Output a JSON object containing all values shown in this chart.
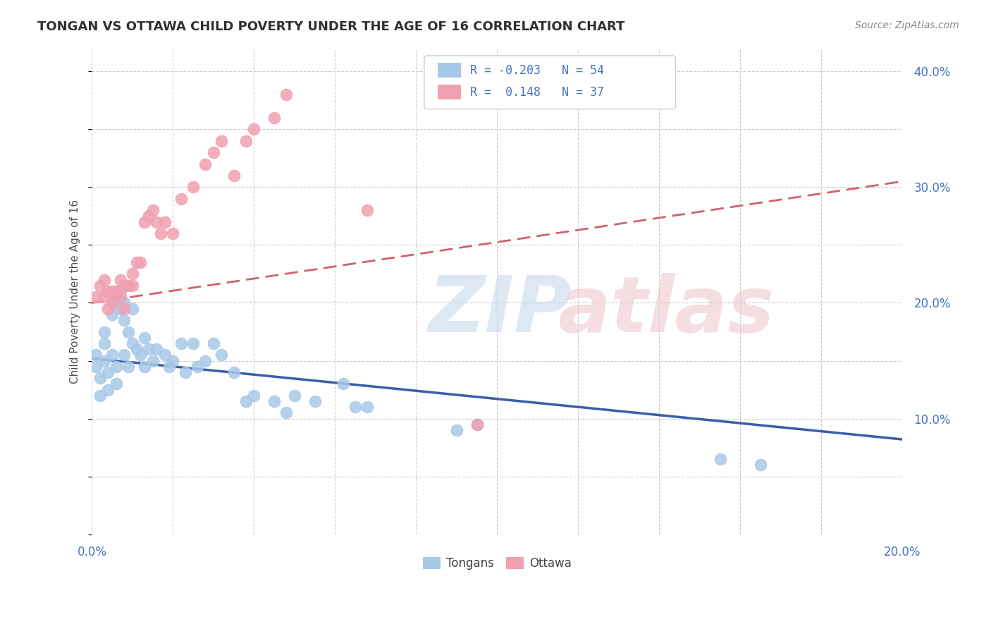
{
  "title": "TONGAN VS OTTAWA CHILD POVERTY UNDER THE AGE OF 16 CORRELATION CHART",
  "source": "Source: ZipAtlas.com",
  "ylabel_label": "Child Poverty Under the Age of 16",
  "xlim": [
    0.0,
    0.2
  ],
  "ylim": [
    0.0,
    0.42
  ],
  "blue_color": "#A8C8E8",
  "pink_color": "#F0A0B0",
  "blue_line_color": "#3A5EA8",
  "pink_line_color": "#D06070",
  "tongans_x": [
    0.001,
    0.001,
    0.002,
    0.002,
    0.003,
    0.003,
    0.003,
    0.004,
    0.004,
    0.005,
    0.005,
    0.005,
    0.006,
    0.006,
    0.007,
    0.007,
    0.008,
    0.008,
    0.008,
    0.009,
    0.009,
    0.01,
    0.01,
    0.011,
    0.012,
    0.013,
    0.013,
    0.014,
    0.015,
    0.016,
    0.018,
    0.019,
    0.02,
    0.022,
    0.023,
    0.025,
    0.026,
    0.028,
    0.03,
    0.032,
    0.035,
    0.038,
    0.04,
    0.045,
    0.048,
    0.05,
    0.055,
    0.062,
    0.065,
    0.068,
    0.09,
    0.095,
    0.155,
    0.165
  ],
  "tongans_y": [
    0.155,
    0.145,
    0.135,
    0.12,
    0.175,
    0.165,
    0.15,
    0.14,
    0.125,
    0.2,
    0.19,
    0.155,
    0.145,
    0.13,
    0.21,
    0.195,
    0.2,
    0.185,
    0.155,
    0.175,
    0.145,
    0.195,
    0.165,
    0.16,
    0.155,
    0.17,
    0.145,
    0.16,
    0.15,
    0.16,
    0.155,
    0.145,
    0.15,
    0.165,
    0.14,
    0.165,
    0.145,
    0.15,
    0.165,
    0.155,
    0.14,
    0.115,
    0.12,
    0.115,
    0.105,
    0.12,
    0.115,
    0.13,
    0.11,
    0.11,
    0.09,
    0.095,
    0.065,
    0.06
  ],
  "ottawa_x": [
    0.001,
    0.002,
    0.003,
    0.003,
    0.004,
    0.004,
    0.005,
    0.005,
    0.006,
    0.007,
    0.007,
    0.008,
    0.008,
    0.009,
    0.01,
    0.01,
    0.011,
    0.012,
    0.013,
    0.014,
    0.015,
    0.016,
    0.017,
    0.018,
    0.02,
    0.022,
    0.025,
    0.028,
    0.03,
    0.032,
    0.035,
    0.038,
    0.04,
    0.045,
    0.048,
    0.068,
    0.095
  ],
  "ottawa_y": [
    0.205,
    0.215,
    0.22,
    0.205,
    0.21,
    0.195,
    0.21,
    0.2,
    0.21,
    0.22,
    0.205,
    0.215,
    0.195,
    0.215,
    0.225,
    0.215,
    0.235,
    0.235,
    0.27,
    0.275,
    0.28,
    0.27,
    0.26,
    0.27,
    0.26,
    0.29,
    0.3,
    0.32,
    0.33,
    0.34,
    0.31,
    0.34,
    0.35,
    0.36,
    0.38,
    0.28,
    0.095
  ]
}
